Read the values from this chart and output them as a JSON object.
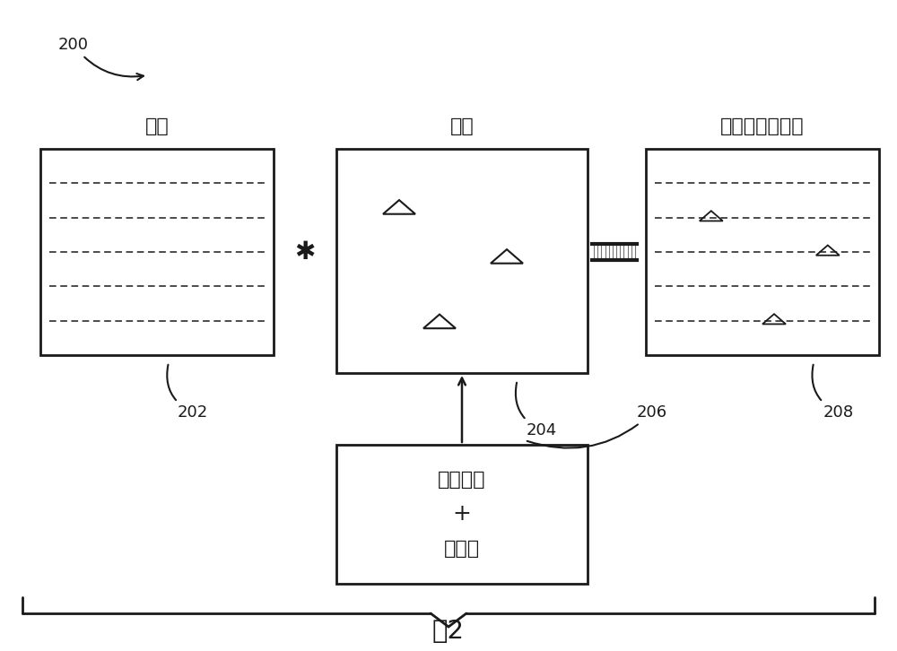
{
  "bg_color": "#ffffff",
  "label_fontsize": 15,
  "small_fontsize": 12,
  "fig_label": "图2",
  "ref_200": "200",
  "ref_202": "202",
  "ref_204": "204",
  "ref_206": "206",
  "ref_208": "208",
  "box1_label": "声道",
  "box2_label": "对象",
  "box3_label": "自适应音频混合",
  "box4_line1": "声道数据",
  "box4_line2": "+",
  "box4_line3": "元数据",
  "text_color": "#1a1a1a",
  "box_edge_color": "#1a1a1a",
  "dashed_color": "#1a1a1a",
  "triangle_color": "#1a1a1a"
}
